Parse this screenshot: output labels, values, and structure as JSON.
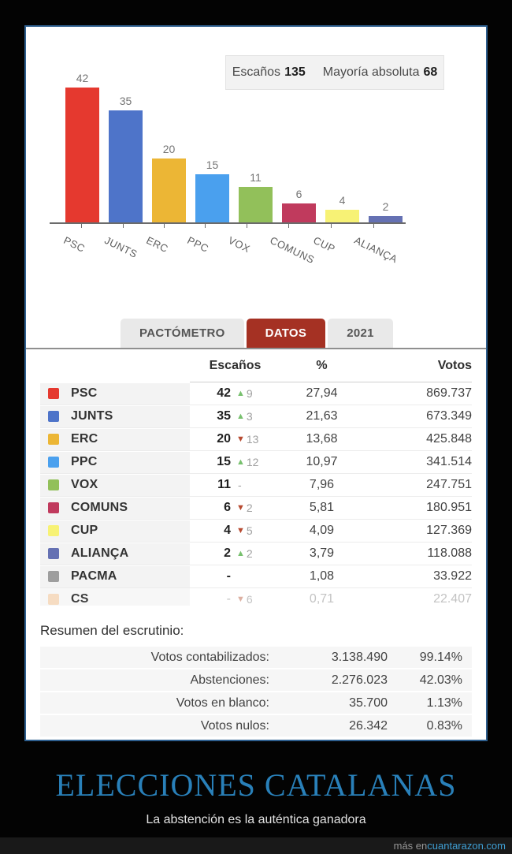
{
  "chart_data": {
    "type": "bar",
    "categories": [
      "PSC",
      "JUNTS",
      "ERC",
      "PPC",
      "VOX",
      "COMUNS",
      "CUP",
      "ALIANÇA"
    ],
    "values": [
      42,
      35,
      20,
      15,
      11,
      6,
      4,
      2
    ],
    "colors": [
      "#e5392f",
      "#4e74c9",
      "#ecb635",
      "#4aa0ee",
      "#92c05a",
      "#c03a5d",
      "#f7f275",
      "#6571b3"
    ],
    "ylim": [
      0,
      45
    ],
    "grid": false,
    "legend": {
      "seats_label": "Escaños",
      "seats_value": "135",
      "majority_label": "Mayoría absoluta",
      "majority_value": "68"
    }
  },
  "tabs": [
    {
      "label": "PACTÓMETRO",
      "active": false
    },
    {
      "label": "DATOS",
      "active": true
    },
    {
      "label": "2021",
      "active": false
    }
  ],
  "table": {
    "headers": {
      "seats": "Escaños",
      "percent": "%",
      "votes": "Votos"
    },
    "rows": [
      {
        "party": "PSC",
        "color": "#e5392f",
        "seats": "42",
        "direction": "up",
        "change": "9",
        "percent": "27,94",
        "votes": "869.737",
        "faded": false
      },
      {
        "party": "JUNTS",
        "color": "#4e74c9",
        "seats": "35",
        "direction": "up",
        "change": "3",
        "percent": "21,63",
        "votes": "673.349",
        "faded": false
      },
      {
        "party": "ERC",
        "color": "#ecb635",
        "seats": "20",
        "direction": "down",
        "change": "13",
        "percent": "13,68",
        "votes": "425.848",
        "faded": false
      },
      {
        "party": "PPC",
        "color": "#4aa0ee",
        "seats": "15",
        "direction": "up",
        "change": "12",
        "percent": "10,97",
        "votes": "341.514",
        "faded": false
      },
      {
        "party": "VOX",
        "color": "#92c05a",
        "seats": "11",
        "direction": "dash",
        "change": "",
        "percent": "7,96",
        "votes": "247.751",
        "faded": false
      },
      {
        "party": "COMUNS",
        "color": "#c03a5d",
        "seats": "6",
        "direction": "down",
        "change": "2",
        "percent": "5,81",
        "votes": "180.951",
        "faded": false
      },
      {
        "party": "CUP",
        "color": "#f7f275",
        "seats": "4",
        "direction": "down",
        "change": "5",
        "percent": "4,09",
        "votes": "127.369",
        "faded": false
      },
      {
        "party": "ALIANÇA",
        "color": "#6571b3",
        "seats": "2",
        "direction": "up",
        "change": "2",
        "percent": "3,79",
        "votes": "118.088",
        "faded": false
      },
      {
        "party": "PACMA",
        "color": "#9e9e9e",
        "seats": "-",
        "direction": "none",
        "change": "",
        "percent": "1,08",
        "votes": "33.922",
        "faded": false
      },
      {
        "party": "CS",
        "color": "#f6dcc2",
        "seats": "-",
        "direction": "down",
        "change": "6",
        "percent": "0,71",
        "votes": "22.407",
        "faded": true
      }
    ]
  },
  "summary": {
    "title": "Resumen del escrutinio:",
    "rows": [
      {
        "label": "Votos contabilizados:",
        "value": "3.138.490",
        "percent": "99.14%"
      },
      {
        "label": "Abstenciones:",
        "value": "2.276.023",
        "percent": "42.03%"
      },
      {
        "label": "Votos en blanco:",
        "value": "35.700",
        "percent": "1.13%"
      },
      {
        "label": "Votos nulos:",
        "value": "26.342",
        "percent": "0.83%"
      }
    ]
  },
  "caption": {
    "title": "ELECCIONES CATALANAS",
    "subtitle": "La abstención es la auténtica ganadora"
  },
  "watermark": {
    "prefix": "más en ",
    "site": "cuantarazon.com"
  },
  "accent_colors": {
    "card_border": "#2e5f8f",
    "tab_active": "#a53123",
    "title_blue": "#2980b9",
    "up_green": "#77c06d",
    "down_red": "#b74a30"
  }
}
